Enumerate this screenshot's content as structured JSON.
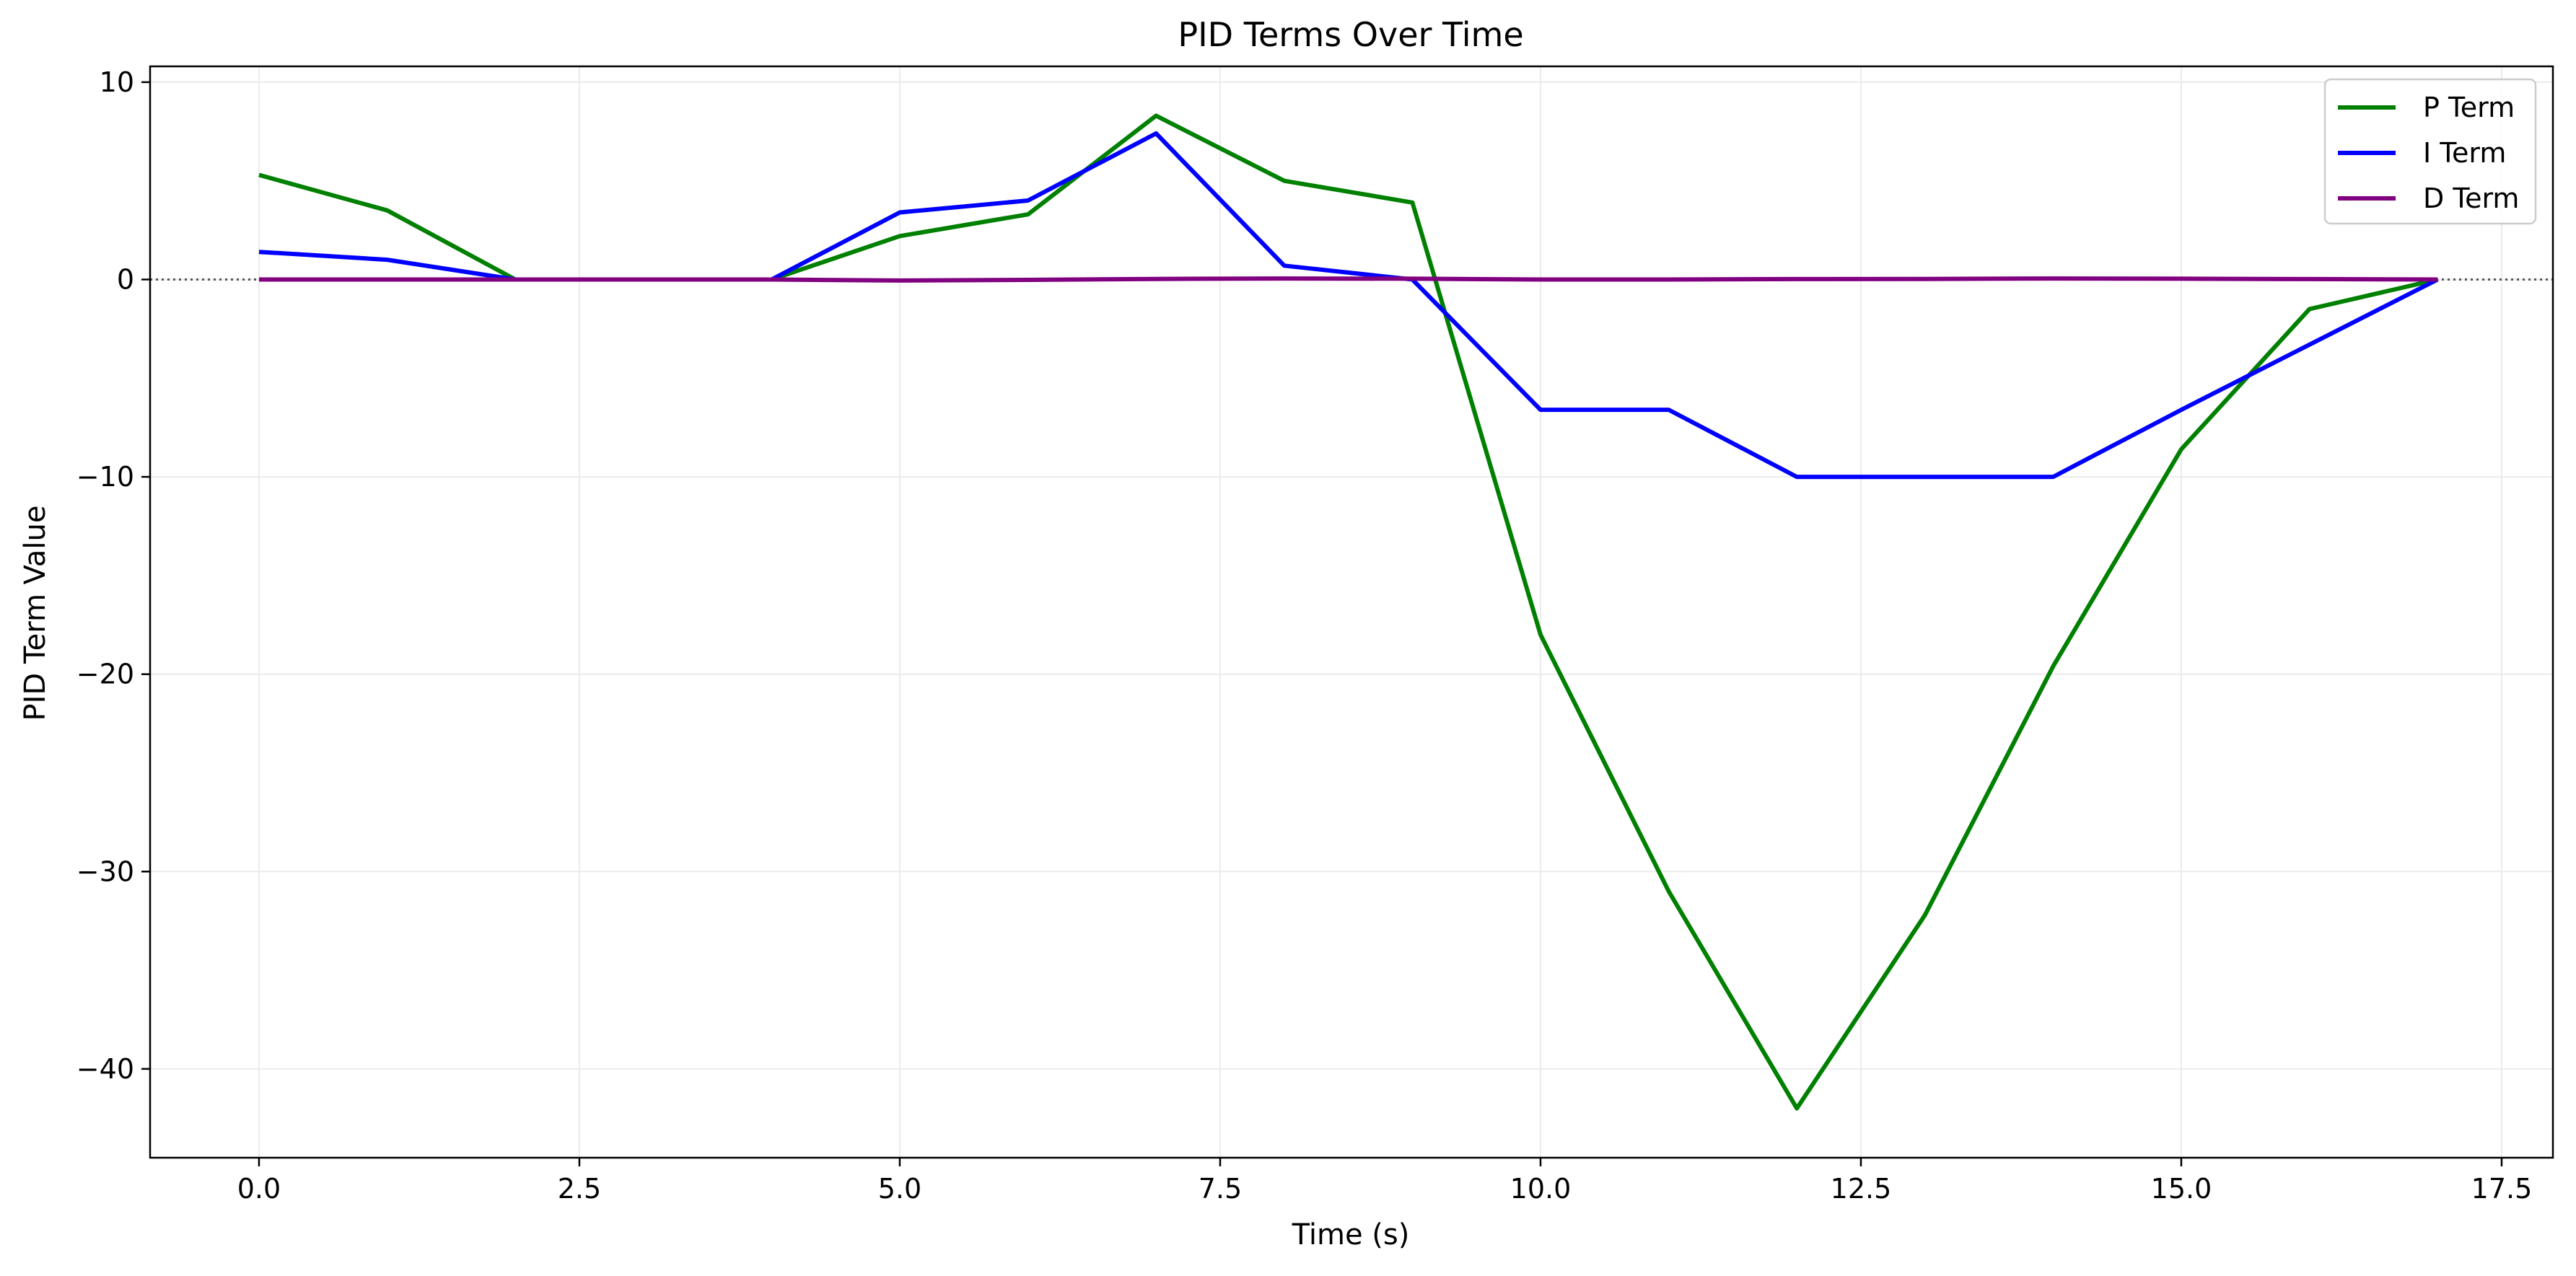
{
  "chart_data": {
    "type": "line",
    "title": "PID Terms Over Time",
    "xlabel": "Time (s)",
    "ylabel": "PID Term Value",
    "xlim": [
      -0.85,
      17.9
    ],
    "ylim": [
      -44.5,
      10.8
    ],
    "xticks": [
      0.0,
      2.5,
      5.0,
      7.5,
      10.0,
      12.5,
      15.0,
      17.5
    ],
    "xtick_labels": [
      "0.0",
      "2.5",
      "5.0",
      "7.5",
      "10.0",
      "12.5",
      "15.0",
      "17.5"
    ],
    "yticks": [
      10,
      0,
      -10,
      -20,
      -30,
      -40
    ],
    "ytick_labels": [
      "10",
      "0",
      "−10",
      "−20",
      "−30",
      "−40"
    ],
    "grid": true,
    "legend_position": "top-right",
    "reference_line": {
      "y": 0,
      "style": "dotted",
      "color": "#555555"
    },
    "series": [
      {
        "name": "P Term",
        "color": "#008000",
        "x": [
          0,
          1,
          2,
          3,
          4,
          5,
          6,
          7,
          8,
          9,
          10,
          11,
          12,
          13,
          14,
          15,
          16,
          17
        ],
        "y": [
          5.3,
          3.5,
          0,
          0,
          0,
          2.2,
          3.3,
          8.3,
          5.0,
          3.9,
          -18.0,
          -31.0,
          -42.0,
          -32.2,
          -19.6,
          -8.6,
          -1.5,
          0
        ]
      },
      {
        "name": "I Term",
        "color": "#0000ff",
        "x": [
          0,
          1,
          2,
          3,
          4,
          5,
          6,
          7,
          8,
          9,
          10,
          11,
          12,
          13,
          14,
          15,
          16,
          17
        ],
        "y": [
          1.4,
          1.0,
          0,
          0,
          0,
          3.4,
          4.0,
          7.4,
          0.7,
          0,
          -6.6,
          -6.6,
          -10.0,
          -10.0,
          -10.0,
          -6.6,
          -3.3,
          0
        ]
      },
      {
        "name": "D Term",
        "color": "#800080",
        "x": [
          0,
          1,
          2,
          3,
          4,
          5,
          6,
          7,
          8,
          9,
          10,
          11,
          12,
          13,
          14,
          15,
          16,
          17
        ],
        "y": [
          0,
          0,
          0,
          0,
          0,
          -0.05,
          -0.02,
          0.03,
          0.05,
          0.04,
          0,
          0,
          0.02,
          0.03,
          0.05,
          0.04,
          0.02,
          0
        ]
      }
    ]
  }
}
